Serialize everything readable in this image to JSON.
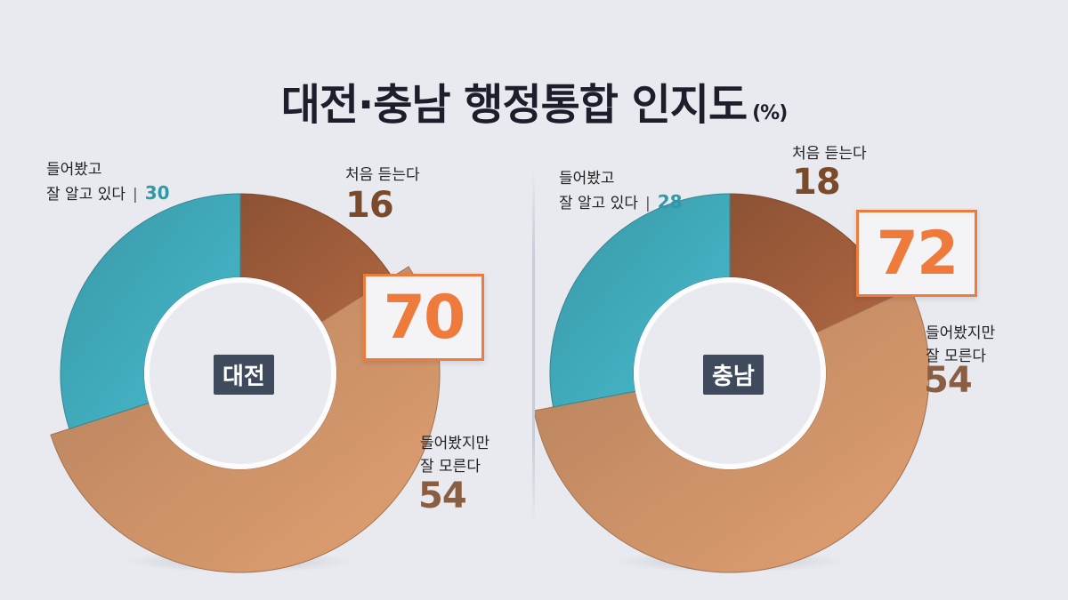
{
  "title": "대전·충남 행정통합 인지도",
  "title_unit": "(%)",
  "colors": {
    "teal": "#3fa8b8",
    "dark_brown": "#9c5b3a",
    "light_brown": "#c98f66",
    "accent": "#ee7a3c"
  },
  "chart_data": [
    {
      "type": "pie",
      "name": "대전",
      "slices": [
        {
          "label_line1": "들어봤고",
          "label_line2": "잘 알고 있다",
          "value": 30,
          "color": "#3fa8b8"
        },
        {
          "label": "처음 듣는다",
          "value": 16,
          "color": "#9c5b3a"
        },
        {
          "label_line1": "들어봤지만",
          "label_line2": "잘 모른다",
          "value": 54,
          "color": "#c98f66"
        }
      ],
      "highlight_value": 70
    },
    {
      "type": "pie",
      "name": "충남",
      "slices": [
        {
          "label_line1": "들어봤고",
          "label_line2": "잘 알고 있다",
          "value": 28,
          "color": "#3fa8b8"
        },
        {
          "label": "처음 듣는다",
          "value": 18,
          "color": "#9c5b3a"
        },
        {
          "label_line1": "들어봤지만",
          "label_line2": "잘 모른다",
          "value": 54,
          "color": "#c98f66"
        }
      ],
      "highlight_value": 72
    }
  ]
}
